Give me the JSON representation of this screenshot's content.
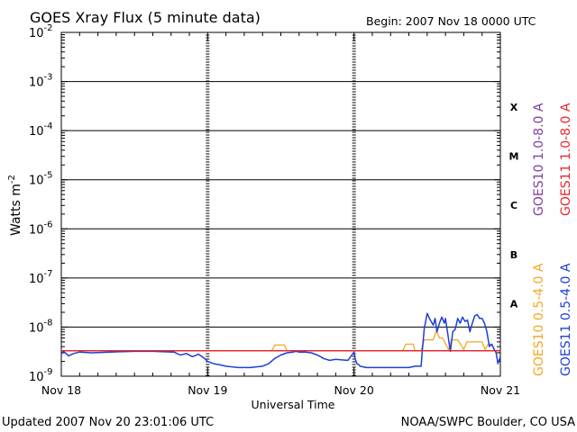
{
  "chart_data": {
    "type": "line",
    "title": "GOES Xray Flux (5 minute data)",
    "begin_label": "Begin:  2007 Nov 18 0000 UTC",
    "xlabel": "Universal Time",
    "ylabel_base": "Watts m",
    "ylabel_exp": "-2",
    "y_scale": "log",
    "ylim": [
      1e-09,
      0.01
    ],
    "xlim": [
      0,
      72
    ],
    "x_ticks": [
      {
        "hours": 0,
        "label": "Nov 18"
      },
      {
        "hours": 24,
        "label": "Nov 19"
      },
      {
        "hours": 48,
        "label": "Nov 20"
      },
      {
        "hours": 72,
        "label": "Nov 21"
      }
    ],
    "y_ticks": [
      {
        "value": 0.01,
        "base": "10",
        "exp": "-2"
      },
      {
        "value": 0.001,
        "base": "10",
        "exp": "-3"
      },
      {
        "value": 0.0001,
        "base": "10",
        "exp": "-4"
      },
      {
        "value": 1e-05,
        "base": "10",
        "exp": "-5"
      },
      {
        "value": 1e-06,
        "base": "10",
        "exp": "-6"
      },
      {
        "value": 1e-07,
        "base": "10",
        "exp": "-7"
      },
      {
        "value": 1e-08,
        "base": "10",
        "exp": "-8"
      },
      {
        "value": 1e-09,
        "base": "10",
        "exp": "-9"
      }
    ],
    "flare_classes": [
      {
        "label": "X",
        "value": 0.0003
      },
      {
        "label": "M",
        "value": 3e-05
      },
      {
        "label": "C",
        "value": 3e-06
      },
      {
        "label": "B",
        "value": 3e-07
      },
      {
        "label": "A",
        "value": 3e-08
      }
    ],
    "grid": true,
    "legend_placement": "right",
    "series": [
      {
        "name": "GOES10 1.0-8.0 A",
        "color": "#7f3f9f",
        "x": [
          0,
          72
        ],
        "y": [
          3.3e-09,
          3.3e-09
        ]
      },
      {
        "name": "GOES11 1.0-8.0 A",
        "color": "#e8262b",
        "x": [
          0,
          72
        ],
        "y": [
          3.3e-09,
          3.3e-09
        ]
      },
      {
        "name": "GOES10 0.5-4.0 A",
        "color": "#f5a623",
        "x": [
          0,
          34.5,
          35,
          36.6,
          37,
          37.5,
          40,
          50,
          56,
          56.5,
          57.7,
          58,
          59,
          59.5,
          61,
          61.5,
          61.8,
          62,
          62.5,
          63.5,
          64,
          65,
          66,
          66.5,
          69,
          69.5,
          70,
          70.5,
          71
        ],
        "y": [
          3.3e-09,
          3.3e-09,
          4.3e-09,
          4.3e-09,
          3.3e-09,
          3.3e-09,
          3.3e-09,
          3.3e-09,
          3.3e-09,
          4.5e-09,
          4.5e-09,
          3.3e-09,
          3.3e-09,
          5.5e-09,
          5.5e-09,
          8.5e-09,
          7e-09,
          6e-09,
          6e-09,
          3.5e-09,
          5.5e-09,
          5.5e-09,
          3.5e-09,
          5e-09,
          5e-09,
          3.5e-09,
          4.5e-09,
          4.5e-09,
          3.5e-09
        ]
      },
      {
        "name": "GOES11 0.5-4.0 A",
        "color": "#1f3fd6",
        "x": [
          0,
          0.3,
          0.8,
          1.2,
          2,
          3,
          5,
          8,
          12,
          15,
          18.5,
          19.5,
          20.5,
          21.5,
          22.5,
          23.5,
          24,
          25,
          26,
          27,
          29,
          31,
          33,
          34,
          35,
          36,
          37,
          38,
          38.5,
          39,
          40,
          41,
          42,
          42.5,
          43,
          44,
          45,
          47,
          48,
          48.2,
          48.5,
          48.8,
          49,
          50,
          52,
          54,
          55,
          56,
          57,
          58,
          58.5,
          59,
          59.2,
          59.5,
          60,
          60.5,
          61,
          61.3,
          61.6,
          62,
          62.4,
          62.8,
          63,
          63.4,
          63.8,
          64.2,
          64.6,
          65,
          65.4,
          65.8,
          66.2,
          66.6,
          67,
          67.4,
          67.8,
          68.2,
          68.6,
          69,
          69.4,
          69.8,
          70.2,
          70.6,
          71,
          71.3,
          71.6,
          72
        ],
        "y": [
          2.8e-09,
          3.2e-09,
          2.9e-09,
          2.6e-09,
          2.9e-09,
          3.1e-09,
          3e-09,
          3.1e-09,
          3.2e-09,
          3.2e-09,
          3.1e-09,
          2.7e-09,
          2.9e-09,
          2.5e-09,
          2.8e-09,
          2.3e-09,
          2e-09,
          1.8e-09,
          1.7e-09,
          1.6e-09,
          1.5e-09,
          1.5e-09,
          1.6e-09,
          1.8e-09,
          2.3e-09,
          2.7e-09,
          3e-09,
          3.1e-09,
          3.2e-09,
          3.1e-09,
          3.1e-09,
          3e-09,
          2.7e-09,
          2.5e-09,
          2.3e-09,
          2.1e-09,
          2.2e-09,
          2.1e-09,
          3.1e-09,
          2.2e-09,
          1.8e-09,
          1.7e-09,
          1.6e-09,
          1.5e-09,
          1.5e-09,
          1.5e-09,
          1.5e-09,
          1.5e-09,
          1.5e-09,
          1.6e-09,
          1.6e-09,
          1.6e-09,
          3.3e-09,
          9e-09,
          1.9e-08,
          1.4e-08,
          1.1e-08,
          1.5e-08,
          8e-09,
          1.2e-08,
          1.6e-08,
          1.2e-08,
          1.5e-08,
          7e-09,
          3.2e-09,
          8e-09,
          9e-09,
          1.5e-08,
          1.2e-08,
          1.6e-08,
          1.3e-08,
          1.4e-08,
          8e-09,
          1.2e-08,
          1.7e-08,
          1.8e-08,
          1.5e-08,
          1.5e-08,
          1.2e-08,
          8e-09,
          4e-09,
          4.5e-09,
          3.5e-09,
          3e-09,
          1.8e-09,
          2.5e-09
        ]
      }
    ]
  },
  "footer": {
    "updated": "Updated 2007 Nov 20 23:01:06 UTC",
    "credit": "NOAA/SWPC Boulder, CO USA"
  }
}
